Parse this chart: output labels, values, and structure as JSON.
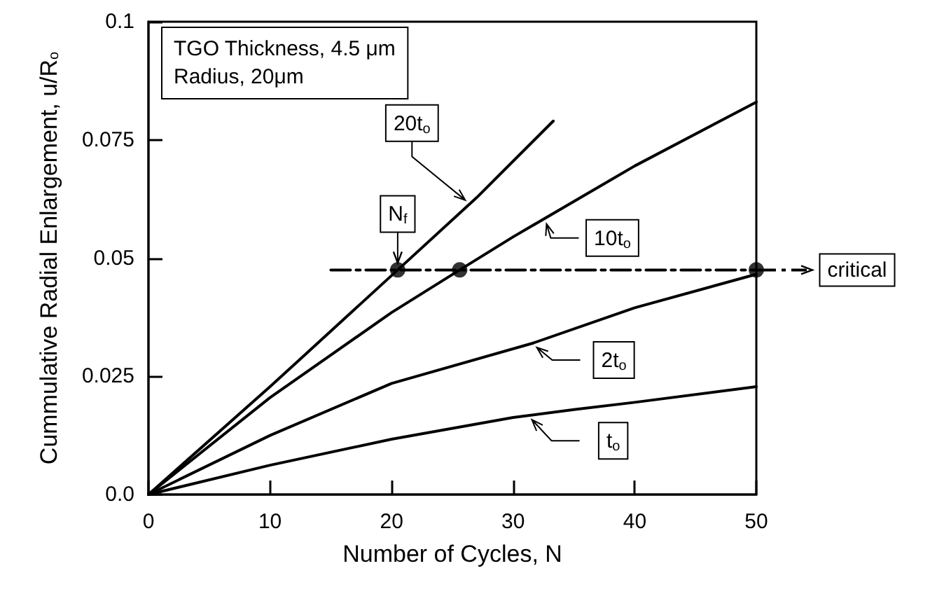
{
  "chart_data": {
    "type": "line",
    "xlabel": "Number of Cycles, N",
    "ylabel": "Cummulative Radial Enlargement, u/R$_{o}$",
    "xlim": [
      0,
      50
    ],
    "xticks": [
      0,
      10,
      20,
      30,
      40,
      50
    ],
    "ylim": [
      0,
      0.1
    ],
    "yticks": [
      {
        "value": 0,
        "label": "0.0"
      },
      0.025,
      0.05,
      0.075,
      0.1
    ],
    "grid": false,
    "legend": "right",
    "marker": "none",
    "line_style": "solid",
    "series": [
      {
        "name": "20t$_{o}$",
        "color": "#000000",
        "x": [
          0,
          10,
          20.5,
          27,
          33.3
        ],
        "values": [
          0,
          0.0228,
          0.0475,
          0.0628,
          0.079
        ]
      },
      {
        "name": "10t$_{o}$",
        "color": "#000000",
        "x": [
          0,
          10,
          20,
          25.6,
          30,
          40,
          50
        ],
        "values": [
          0,
          0.0205,
          0.0385,
          0.0475,
          0.0545,
          0.0695,
          0.083
        ]
      },
      {
        "name": "2t$_{o}$",
        "color": "#000000",
        "x": [
          0,
          10,
          20,
          31.6,
          40,
          50
        ],
        "values": [
          0,
          0.0125,
          0.0235,
          0.032,
          0.0395,
          0.0466
        ]
      },
      {
        "name": "t$_{o}$",
        "color": "#000000",
        "x": [
          0,
          10,
          20,
          30,
          35.1,
          40,
          50
        ],
        "values": [
          0,
          0.0062,
          0.0117,
          0.0163,
          0.018,
          0.0195,
          0.0228
        ]
      },
      {
        "name": "critical",
        "type": "line",
        "color": "#000000",
        "line_style": "dashed",
        "x": [
          15,
          50
        ],
        "values": [
          0.0475,
          0.0475
        ]
      },
      {
        "type": "scatter",
        "color": "#000000",
        "marker": "circle",
        "x": [
          20.5,
          25.6,
          50
        ],
        "values": [
          0.0475,
          0.0475,
          0.0475
        ]
      }
    ],
    "annotations": [
      "TGO Thickness, 4.5 μm",
      "Radius, 20μm",
      {
        "text": "N$_{f}$",
        "x": 20.5,
        "y": 0.0475
      }
    ]
  }
}
